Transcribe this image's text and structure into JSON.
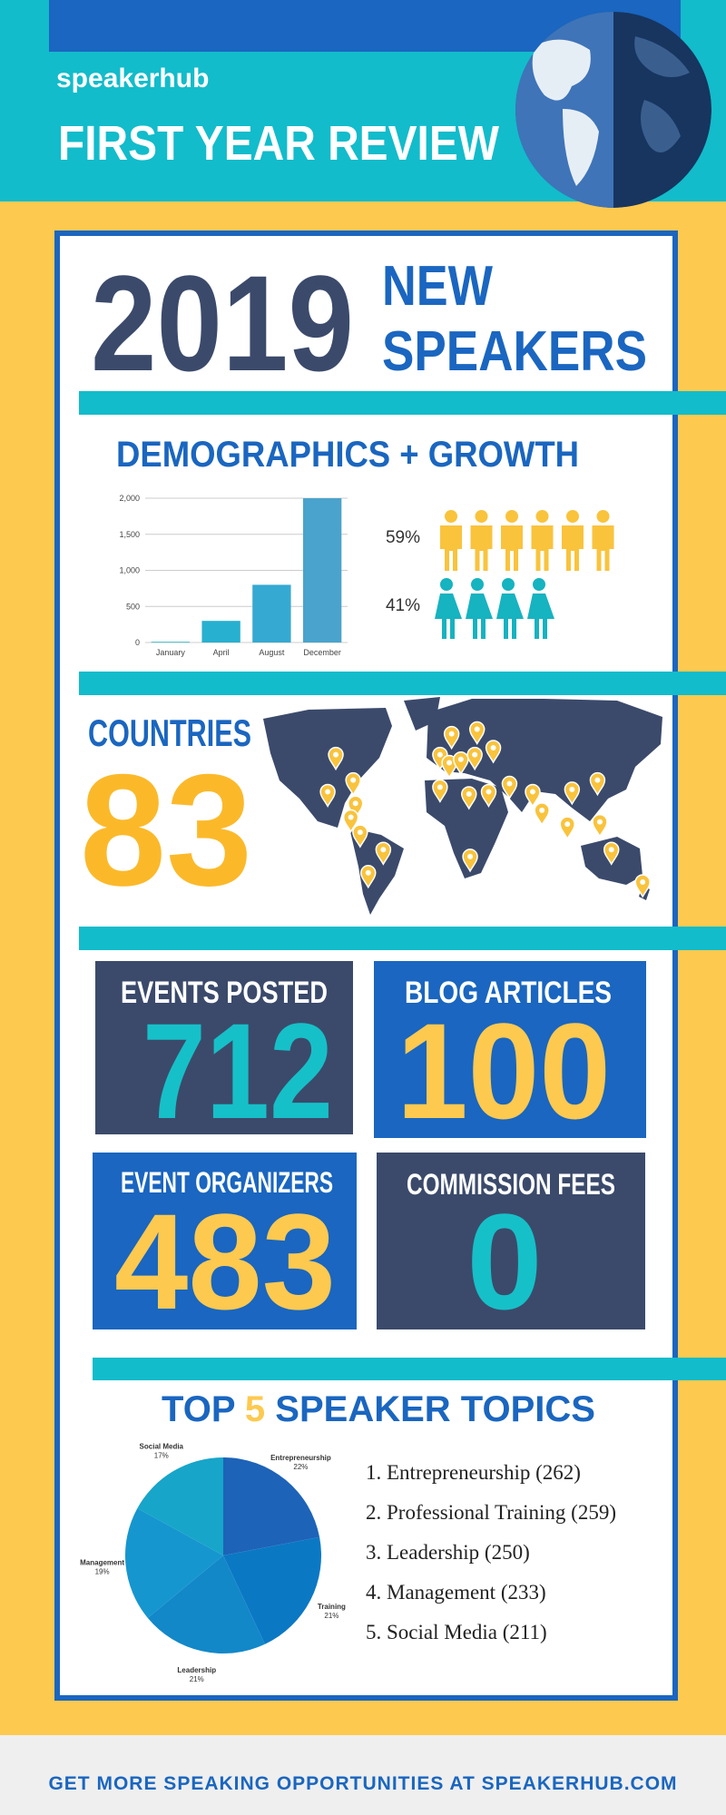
{
  "header": {
    "logo": "speakerhub",
    "title": "FIRST YEAR REVIEW"
  },
  "speakers": {
    "number": "2019",
    "label_line1": "NEW",
    "label_line2": "SPEAKERS"
  },
  "demographics": {
    "heading": "DEMOGRAPHICS + GROWTH",
    "growth_chart": {
      "type": "bar",
      "categories": [
        "January",
        "April",
        "August",
        "December"
      ],
      "values": [
        10,
        300,
        800,
        2000
      ],
      "colors": [
        "#2bb5c9",
        "#27b0d0",
        "#36a9d2",
        "#4aa3cc"
      ],
      "ylim": [
        0,
        2000
      ],
      "yticks": [
        0,
        500,
        {
          "value": 1000,
          "label": "1,000"
        },
        {
          "value": 1500,
          "label": "1,500"
        },
        {
          "value": 2000,
          "label": "2,000"
        }
      ],
      "grid": true
    },
    "gender": [
      {
        "label": "59%"
      },
      {
        "label": "41%"
      }
    ]
  },
  "countries": {
    "heading": "COUNTRIES",
    "number": "83"
  },
  "stats": [
    {
      "label": "EVENTS POSTED",
      "number": "712"
    },
    {
      "label": "BLOG ARTICLES",
      "number": "100"
    },
    {
      "label": "EVENT ORGANIZERS",
      "number": "483"
    },
    {
      "label": "COMMISSION FEES",
      "number": "0"
    }
  ],
  "topics": {
    "heading_start": "TOP",
    "heading_number": "5",
    "heading_end": "SPEAKER TOPICS",
    "topics_chart": {
      "type": "pie",
      "categories": [
        "Entrepreneurship",
        "Training",
        "Leadership",
        "Management",
        "Social Media"
      ],
      "values": [
        22,
        21,
        21,
        19,
        17
      ],
      "value_labels": [
        "22%",
        "21%",
        "21%",
        "19%",
        "17%"
      ],
      "colors": [
        "#1d63b8",
        "#0b78c4",
        "#1288c9",
        "#1696cf",
        "#17a5c9"
      ]
    },
    "list": [
      "1. Entrepreneurship (262)",
      "2. Professional Training (259)",
      "3. Leadership (250)",
      "4. Management (233)",
      "5. Social Media (211)"
    ]
  },
  "footer": {
    "text": "GET MORE SPEAKING OPPORTUNITIES AT SPEAKERHUB.COM"
  }
}
